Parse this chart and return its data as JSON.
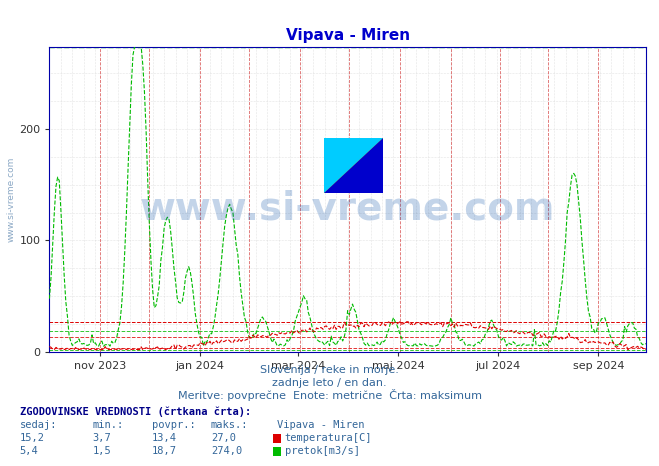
{
  "title": "Vipava - Miren",
  "title_color": "#0000cc",
  "bg_color": "#ffffff",
  "plot_bg_color": "#ffffff",
  "y_ticks": [
    0,
    100,
    200
  ],
  "ylim": [
    0,
    274
  ],
  "temp_max": 27.0,
  "temp_avg": 13.4,
  "temp_min": 3.7,
  "temp_current": 15.2,
  "flow_max": 274.0,
  "flow_avg": 18.7,
  "flow_min": 1.5,
  "flow_current": 5.4,
  "temp_line_color": "#dd0000",
  "flow_line_color": "#00bb00",
  "grid_v_color": "#dd6666",
  "subtitle1": "Slovenija / reke in morje.",
  "subtitle2": "zadnje leto / en dan.",
  "subtitle3": "Meritve: povprečne  Enote: metrične  Črta: maksimum",
  "hist_label": "ZGODOVINSKE VREDNOSTI (črtkana črta):",
  "col_sedaj": "sedaj:",
  "col_min": "min.:",
  "col_povpr": "povpr.:",
  "col_maks": "maks.:",
  "station_name": "Vipava - Miren",
  "row1_label": "temperatura[C]",
  "row2_label": "pretok[m3/s]",
  "watermark": "www.si-vreme.com",
  "row1_vals": [
    "15,2",
    "3,7",
    "13,4",
    "27,0"
  ],
  "row2_vals": [
    "5,4",
    "1,5",
    "18,7",
    "274,0"
  ],
  "n_days": 365,
  "x_tick_labels": [
    "nov 2023",
    "jan 2024",
    "mar 2024",
    "maj 2024",
    "jul 2024",
    "sep 2024"
  ],
  "x_tick_days": [
    31,
    92,
    152,
    213,
    274,
    335
  ],
  "flag_yellow": "#ffff00",
  "flag_cyan": "#00ccff",
  "flag_blue": "#0000cc",
  "axis_color": "#0000aa",
  "text_color": "#336699",
  "bold_color": "#000088"
}
